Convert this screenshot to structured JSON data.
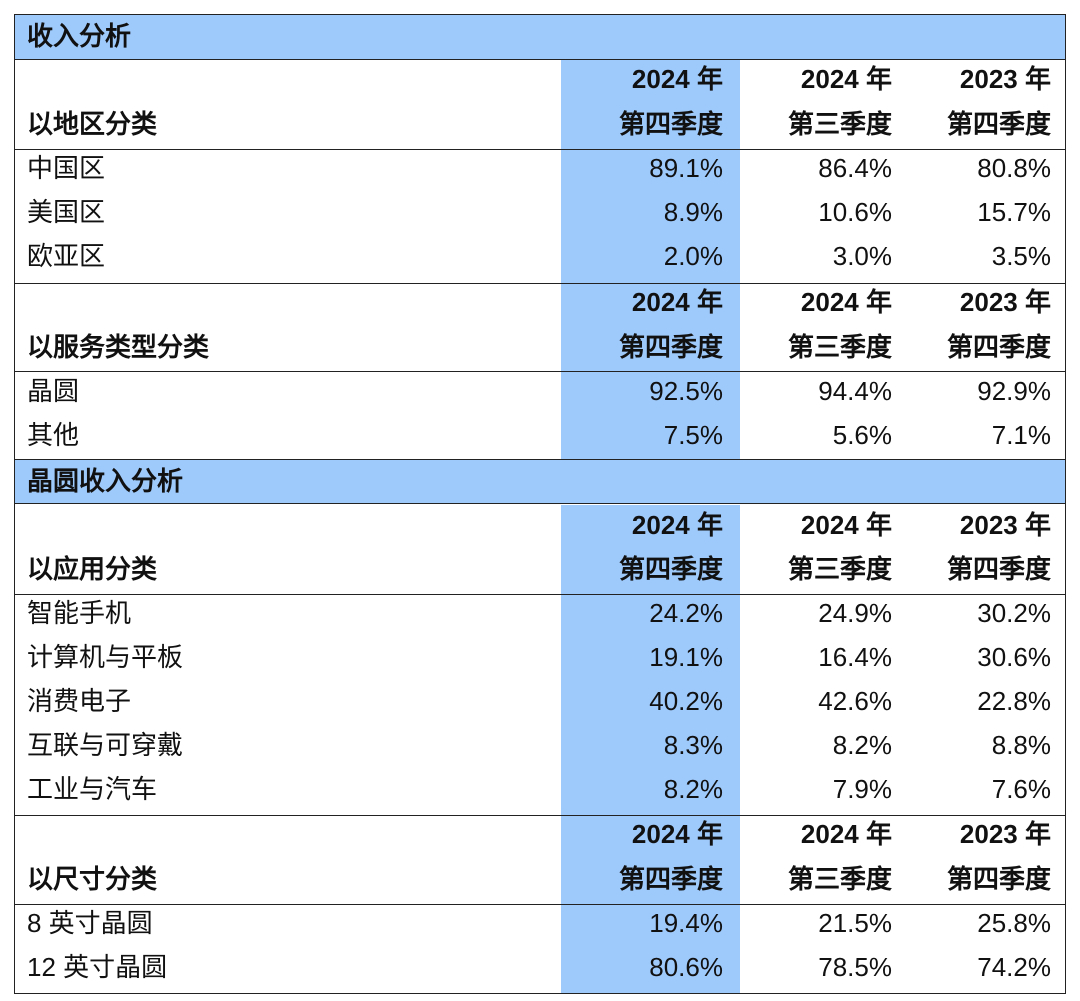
{
  "headers": {
    "col1_year": "2024 年",
    "col1_quarter": "第四季度",
    "col2_year": "2024 年",
    "col2_quarter": "第三季度",
    "col3_year": "2023 年",
    "col3_quarter": "第四季度"
  },
  "sections": [
    {
      "banner": "收入分析",
      "groups": [
        {
          "title": "以地区分类",
          "rows": [
            {
              "label": "中国区",
              "values": [
                "89.1%",
                "86.4%",
                "80.8%"
              ]
            },
            {
              "label": "美国区",
              "values": [
                "8.9%",
                "10.6%",
                "15.7%"
              ]
            },
            {
              "label": "欧亚区",
              "values": [
                "2.0%",
                "3.0%",
                "3.5%"
              ]
            }
          ]
        },
        {
          "title": "以服务类型分类",
          "rows": [
            {
              "label": "晶圆",
              "values": [
                "92.5%",
                "94.4%",
                "92.9%"
              ]
            },
            {
              "label": "其他",
              "values": [
                "7.5%",
                "5.6%",
                "7.1%"
              ]
            }
          ]
        }
      ]
    },
    {
      "banner": "晶圆收入分析",
      "groups": [
        {
          "title": "以应用分类",
          "rows": [
            {
              "label": "智能手机",
              "values": [
                "24.2%",
                "24.9%",
                "30.2%"
              ]
            },
            {
              "label": "计算机与平板",
              "values": [
                "19.1%",
                "16.4%",
                "30.6%"
              ]
            },
            {
              "label": "消费电子",
              "values": [
                "40.2%",
                "42.6%",
                "22.8%"
              ]
            },
            {
              "label": "互联与可穿戴",
              "values": [
                "8.3%",
                "8.2%",
                "8.8%"
              ]
            },
            {
              "label": "工业与汽车",
              "values": [
                "8.2%",
                "7.9%",
                "7.6%"
              ]
            }
          ]
        },
        {
          "title": "以尺寸分类",
          "rows": [
            {
              "label": "8 英寸晶圆",
              "values": [
                "19.4%",
                "21.5%",
                "25.8%"
              ]
            },
            {
              "label": "12 英寸晶圆",
              "values": [
                "80.6%",
                "78.5%",
                "74.2%"
              ]
            }
          ]
        }
      ]
    }
  ]
}
